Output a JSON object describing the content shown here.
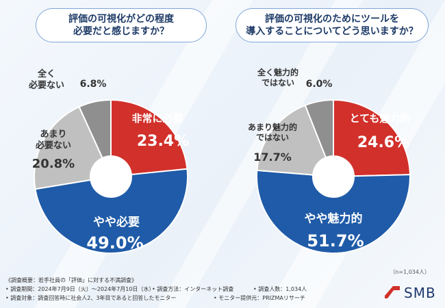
{
  "questions": {
    "left": "評価の可視化がどの程度\n必要だと感じますか？",
    "right": "評価の可視化のためにツールを\n導入することについてどう思いますか？"
  },
  "chart_data": [
    {
      "type": "pie",
      "title": "評価の可視化がどの程度必要だと感じますか？",
      "categories": [
        "非常に必要",
        "やや必要",
        "あまり必要ない",
        "全く必要ない"
      ],
      "values": [
        23.4,
        49.0,
        20.8,
        6.8
      ],
      "value_labels": [
        "23.4%",
        "49.0%",
        "20.8%",
        "6.8%"
      ],
      "colors": [
        "#d2302b",
        "#1f5ba8",
        "#c0c0c0",
        "#8f8f8f"
      ]
    },
    {
      "type": "pie",
      "title": "評価の可視化のためにツールを導入することについてどう思いますか？",
      "categories": [
        "とても魅力的",
        "やや魅力的",
        "あまり魅力的ではない",
        "全く魅力的ではない"
      ],
      "values": [
        24.6,
        51.7,
        17.7,
        6.0
      ],
      "value_labels": [
        "24.6%",
        "51.7%",
        "17.7%",
        "6.0%"
      ],
      "colors": [
        "#d2302b",
        "#1f5ba8",
        "#c0c0c0",
        "#8f8f8f"
      ]
    }
  ],
  "labels": {
    "left": [
      "非常に必要",
      "やや必要",
      "あまり\n必要ない",
      "全く\n必要ない"
    ],
    "right": [
      "とても魅力的",
      "やや魅力的",
      "あまり魅力的\nではない",
      "全く魅力的\nではない"
    ]
  },
  "note_n": "（n=1,034人）",
  "footer": {
    "line1": "《調査概要：若手社員の「評価」に対する不満調査》",
    "period": "• 調査期間：2024年7月9日（火）〜2024年7月10日（水）",
    "method": "• 調査方法：インターネット調査",
    "count": "• 調査人数：1,034人",
    "subject": "• 調査対象：調査回答時に社会人2、3年目であると回答したモニター",
    "provider": "• モニター提供元：PRIZMAリサーチ"
  },
  "logo": {
    "text": "SMB",
    "color": "#d2302b"
  }
}
